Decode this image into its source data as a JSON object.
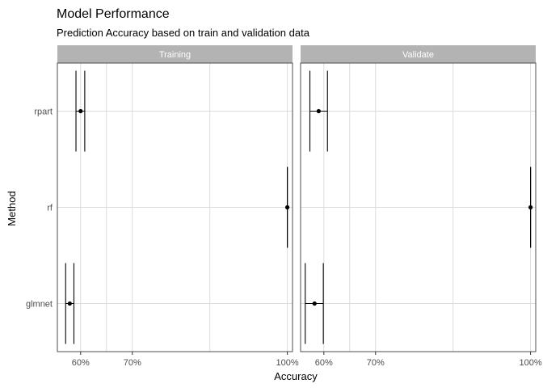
{
  "chart_data": {
    "type": "errorbar",
    "title": "Model Performance",
    "subtitle": "Prediction Accuracy based on train and validation data",
    "xlabel": "Accuracy",
    "ylabel": "Method",
    "facets": [
      "Training",
      "Validate"
    ],
    "categories": [
      "rpart",
      "rf",
      "glmnet"
    ],
    "xlim": [
      0.555,
      1.01
    ],
    "x_ticks": [
      0.6,
      0.7,
      1.0
    ],
    "x_tick_labels": [
      "60%",
      "70%",
      "100%"
    ],
    "grid": true,
    "panels": [
      {
        "facet": "Training",
        "points": [
          {
            "method": "rpart",
            "accuracy": 0.6,
            "lower": 0.591,
            "upper": 0.608
          },
          {
            "method": "rf",
            "accuracy": 1.0,
            "lower": 1.0,
            "upper": 1.0
          },
          {
            "method": "glmnet",
            "accuracy": 0.579,
            "lower": 0.571,
            "upper": 0.587
          }
        ]
      },
      {
        "facet": "Validate",
        "points": [
          {
            "method": "rpart",
            "accuracy": 0.59,
            "lower": 0.573,
            "upper": 0.607
          },
          {
            "method": "rf",
            "accuracy": 1.0,
            "lower": 1.0,
            "upper": 1.0
          },
          {
            "method": "glmnet",
            "accuracy": 0.582,
            "lower": 0.564,
            "upper": 0.599
          }
        ]
      }
    ]
  },
  "colors": {
    "strip_fill": "#b3b3b3",
    "grid": "#dcdcdc",
    "panel_border": "#4d4d4d",
    "mark": "#000000"
  }
}
